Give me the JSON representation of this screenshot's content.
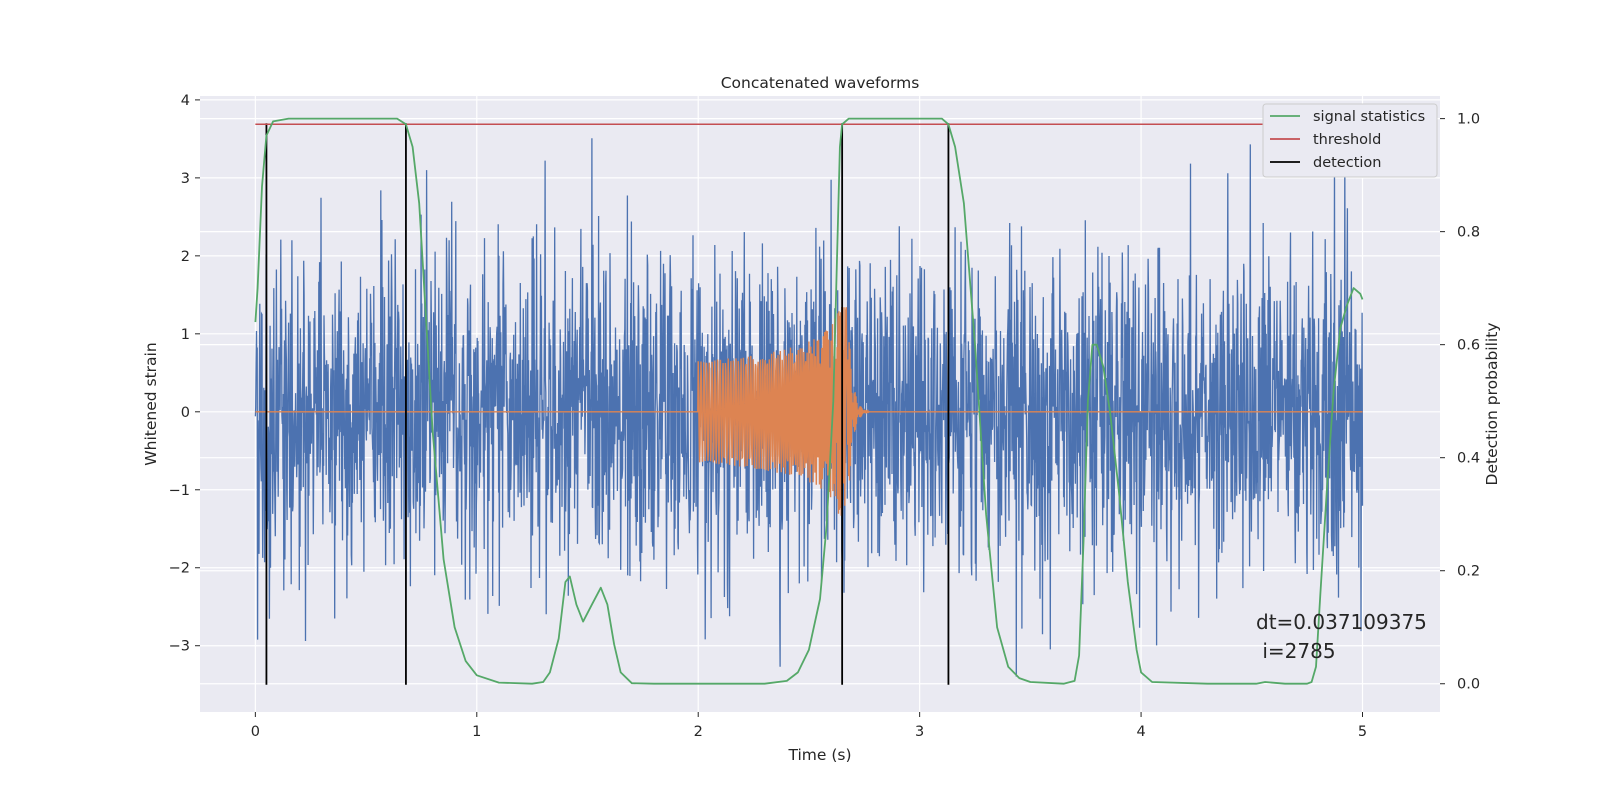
{
  "chart_data": {
    "type": "line",
    "title": "Concatenated waveforms",
    "xlabel": "Time (s)",
    "ylabel": "Whitened strain",
    "ylabel_right": "Detection probability",
    "xlim": [
      -0.25,
      5.35
    ],
    "ylim": [
      -3.85,
      4.05
    ],
    "ylim_right": [
      -0.05,
      1.04
    ],
    "xticks": [
      0,
      1,
      2,
      3,
      4,
      5
    ],
    "yticks": [
      -3,
      -2,
      -1,
      0,
      1,
      2,
      3,
      4
    ],
    "yticks_right": [
      0.0,
      0.2,
      0.4,
      0.6,
      0.8,
      1.0
    ],
    "xtick_labels": [
      "0",
      "1",
      "2",
      "3",
      "4",
      "5"
    ],
    "ytick_labels": [
      "−3",
      "−2",
      "−1",
      "0",
      "1",
      "2",
      "3",
      "4"
    ],
    "ytick_right_labels": [
      "0.0",
      "0.2",
      "0.4",
      "0.6",
      "0.8",
      "1.0"
    ],
    "grid": true,
    "legend_position": "top-right",
    "legend": [
      {
        "name": "signal statistics",
        "color": "#55a868"
      },
      {
        "name": "threshold",
        "color": "#c44e52"
      },
      {
        "name": "detection",
        "color": "#000000"
      }
    ],
    "series": [
      {
        "name": "whitened noise",
        "axis": "left",
        "color": "#4c72b0",
        "kind": "noise",
        "x_range": [
          0,
          5
        ],
        "typical_amplitude": 1.0,
        "peak_range": [
          -3.5,
          3.6
        ]
      },
      {
        "name": "injected waveforms",
        "axis": "left",
        "color": "#dd8452",
        "kind": "chirp",
        "x_range": [
          0,
          5
        ],
        "chirp_start": 2.0,
        "merger_time": 2.67,
        "peak_amplitude": 1.35
      },
      {
        "name": "signal statistics",
        "axis": "right",
        "color": "#55a868",
        "x": [
          0.0,
          0.01,
          0.03,
          0.05,
          0.08,
          0.15,
          0.4,
          0.6,
          0.64,
          0.68,
          0.71,
          0.74,
          0.77,
          0.8,
          0.85,
          0.9,
          0.95,
          1.0,
          1.1,
          1.25,
          1.3,
          1.33,
          1.37,
          1.4,
          1.42,
          1.45,
          1.48,
          1.52,
          1.56,
          1.59,
          1.62,
          1.65,
          1.7,
          1.8,
          2.0,
          2.3,
          2.4,
          2.45,
          2.5,
          2.55,
          2.58,
          2.61,
          2.63,
          2.64,
          2.65,
          2.68,
          2.75,
          3.0,
          3.1,
          3.13,
          3.16,
          3.2,
          3.25,
          3.3,
          3.35,
          3.4,
          3.45,
          3.5,
          3.65,
          3.7,
          3.72,
          3.74,
          3.76,
          3.78,
          3.8,
          3.83,
          3.86,
          3.9,
          3.94,
          3.98,
          4.0,
          4.05,
          4.3,
          4.52,
          4.56,
          4.65,
          4.75,
          4.77,
          4.79,
          4.81,
          4.84,
          4.87,
          4.9,
          4.93,
          4.96,
          4.99,
          5.0
        ],
        "y": [
          0.64,
          0.7,
          0.88,
          0.97,
          0.995,
          1.0,
          1.0,
          1.0,
          1.0,
          0.99,
          0.95,
          0.85,
          0.65,
          0.45,
          0.22,
          0.1,
          0.04,
          0.015,
          0.002,
          0.0,
          0.003,
          0.02,
          0.08,
          0.18,
          0.19,
          0.14,
          0.11,
          0.14,
          0.17,
          0.14,
          0.07,
          0.02,
          0.001,
          0.0,
          0.0,
          0.0,
          0.005,
          0.02,
          0.06,
          0.15,
          0.28,
          0.5,
          0.8,
          0.95,
          0.99,
          1.0,
          1.0,
          1.0,
          1.0,
          0.99,
          0.95,
          0.85,
          0.6,
          0.3,
          0.1,
          0.03,
          0.01,
          0.003,
          0.0,
          0.005,
          0.05,
          0.25,
          0.5,
          0.6,
          0.6,
          0.56,
          0.48,
          0.34,
          0.18,
          0.06,
          0.02,
          0.003,
          0.0,
          0.0,
          0.003,
          0.0,
          0.0,
          0.003,
          0.03,
          0.16,
          0.35,
          0.52,
          0.63,
          0.67,
          0.7,
          0.69,
          0.68
        ]
      },
      {
        "name": "threshold",
        "axis": "right",
        "color": "#c44e52",
        "x": [
          0,
          5
        ],
        "y": [
          0.99,
          0.99
        ]
      }
    ],
    "detections": [
      0.05,
      0.68,
      2.65,
      3.13
    ],
    "detection_range_left": [
      -3.5,
      3.7
    ],
    "annotation": {
      "lines": [
        "dt=0.037109375",
        " i=2785"
      ],
      "x": 4.52,
      "y": -2.65
    }
  }
}
